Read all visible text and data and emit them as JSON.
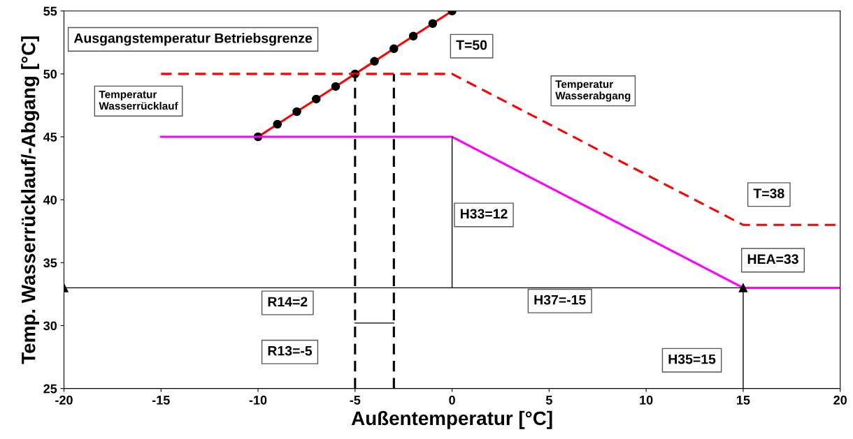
{
  "chart_data": {
    "type": "line",
    "xlabel": "Außentemperatur [°C]",
    "ylabel": "Temp. Wasserrücklauf/-Abgang [°C]",
    "xlim": [
      -20,
      20
    ],
    "xticks": [
      -20,
      -15,
      -10,
      -5,
      0,
      5,
      10,
      15,
      20
    ],
    "ylim": [
      25,
      55
    ],
    "yticks": [
      25,
      30,
      35,
      40,
      45,
      50,
      55
    ],
    "grid": false,
    "series": [
      {
        "color": "#ff0000",
        "x": [
          -10,
          -9,
          -8,
          -7,
          -6,
          -5,
          -4,
          -3,
          -2,
          -1,
          0
        ],
        "values": [
          45,
          46,
          47,
          48,
          49,
          50,
          51,
          52,
          53,
          54,
          55
        ],
        "marker": "circle",
        "line_style": "solid"
      },
      {
        "color": "#ff0000",
        "x": [
          -15,
          0,
          15,
          20
        ],
        "values": [
          50,
          50,
          38,
          38
        ],
        "line_style": "dashed"
      },
      {
        "color": "#ff00ff",
        "x": [
          -15,
          0,
          15,
          20
        ],
        "values": [
          45,
          45,
          33,
          33
        ],
        "line_style": "solid"
      },
      {
        "color": "#000000",
        "x": [
          -5,
          -5
        ],
        "values": [
          25,
          50
        ],
        "line_style": "dashed"
      },
      {
        "color": "#000000",
        "x": [
          -3,
          -3
        ],
        "values": [
          25,
          50
        ],
        "line_style": "dashed"
      },
      {
        "color": "#000000",
        "x": [
          -20,
          15
        ],
        "values": [
          33,
          33
        ],
        "marker": "triangle",
        "line_style": "solid"
      },
      {
        "color": "#000000",
        "x": [
          0,
          0
        ],
        "values": [
          33,
          45
        ],
        "line_style": "solid"
      },
      {
        "color": "#000000",
        "x": [
          15,
          15
        ],
        "values": [
          25,
          33
        ],
        "line_style": "solid"
      },
      {
        "color": "#000000",
        "x": [
          -5,
          -3
        ],
        "values": [
          30.2,
          30.2
        ],
        "line_style": "solid"
      }
    ],
    "annotations": [
      "Ausgangstemperatur Betriebsgrenze",
      "T=50",
      "Temperatur\nWasserrücklauf",
      "Temperatur\nWasserabgang",
      "T=38",
      "H33=12",
      "HEA=33",
      "R14=2",
      "H37=-15",
      "R13=-5",
      "H35=15"
    ]
  }
}
